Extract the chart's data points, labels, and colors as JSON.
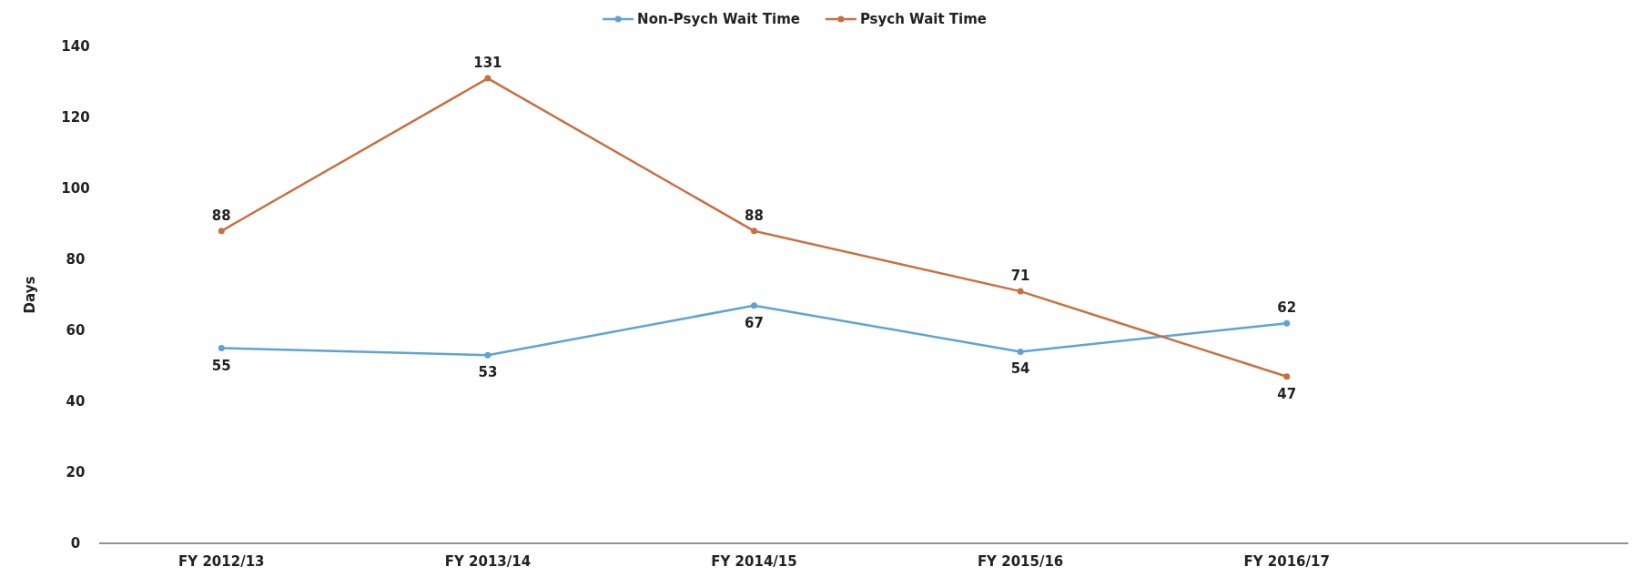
{
  "chart_data": {
    "type": "line",
    "ylabel": "Days",
    "categories": [
      "FY 2012/13",
      "FY 2013/14",
      "FY 2014/15",
      "FY 2015/16",
      "FY 2016/17"
    ],
    "series": [
      {
        "name": "Non-Psych Wait Time",
        "color": "#5fa3d6",
        "values": [
          55,
          53,
          67,
          54,
          62
        ]
      },
      {
        "name": "Psych Wait Time",
        "color": "#c8703f",
        "values": [
          88,
          131,
          88,
          71,
          47
        ]
      }
    ],
    "ylim": [
      0,
      140
    ],
    "yticks": [
      0,
      20,
      40,
      60,
      80,
      100,
      120,
      140
    ],
    "grid": false,
    "legend": "top",
    "marker": "circle",
    "line_style": "solid",
    "data_labels": true
  }
}
